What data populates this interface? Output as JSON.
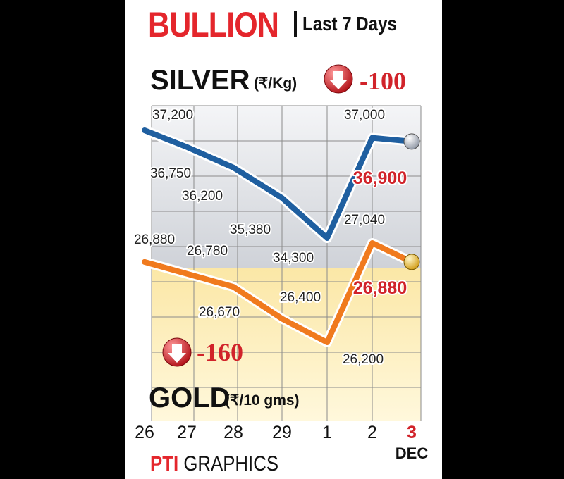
{
  "header": {
    "title": "BULLION",
    "subtitle": "Last 7 Days"
  },
  "footer": {
    "logo": "PTI",
    "label": "GRAPHICS"
  },
  "chart_data": {
    "type": "line",
    "categories": [
      "26",
      "27",
      "28",
      "29",
      "1",
      "2",
      "3"
    ],
    "month_label": "DEC",
    "grid": true,
    "series": [
      {
        "name": "SILVER",
        "unit": "(₹/Kg)",
        "change": "-100",
        "color": "#1f5fa0",
        "marker_color": "#c9ced6",
        "values": [
          37200,
          36750,
          36200,
          35380,
          34300,
          37000,
          36900
        ],
        "labels": [
          "37,200",
          "36,750",
          "36,200",
          "35,380",
          "34,300",
          "37,000",
          "36,900"
        ]
      },
      {
        "name": "GOLD",
        "unit": "(₹/10 gms)",
        "change": "-160",
        "color": "#f07a1e",
        "marker_color": "#f4c430",
        "values": [
          26880,
          26780,
          26670,
          26400,
          26200,
          27040,
          26880
        ],
        "labels": [
          "26,880",
          "26,780",
          "26,670",
          "26,400",
          "26,200",
          "27,040",
          "26,880"
        ]
      }
    ]
  }
}
